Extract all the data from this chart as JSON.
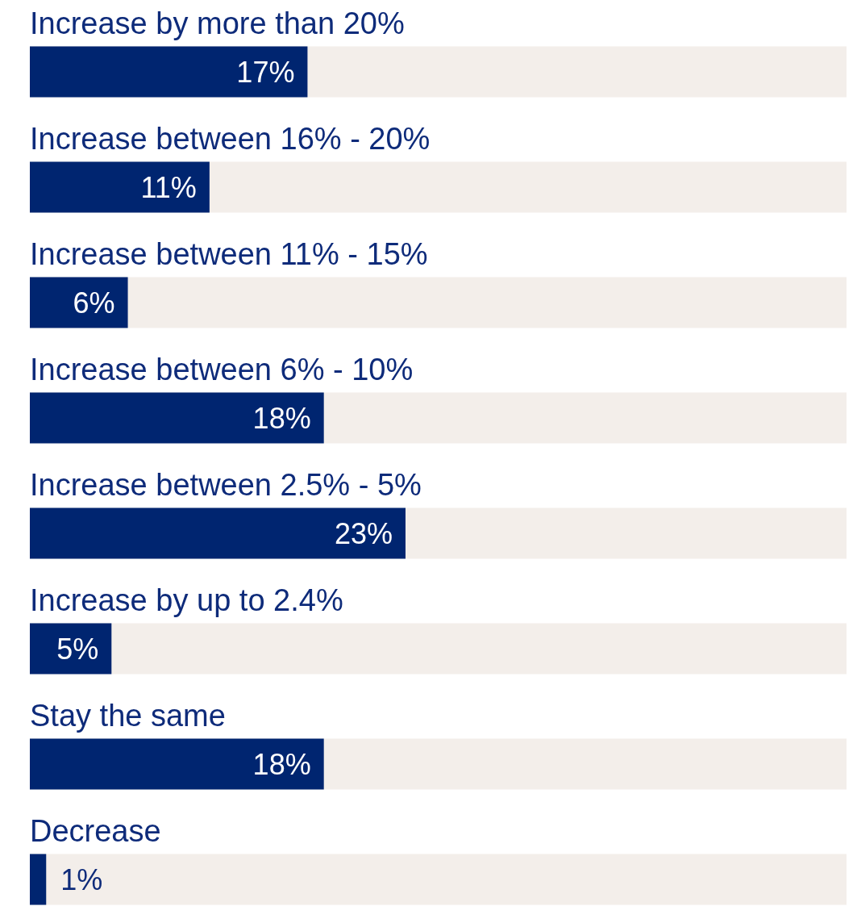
{
  "chart_data": {
    "type": "bar",
    "orientation": "horizontal",
    "categories": [
      "Increase by more than 20%",
      "Increase between 16% - 20%",
      "Increase between 11% - 15%",
      "Increase between 6% - 10%",
      "Increase between 2.5% - 5%",
      "Increase by up to 2.4%",
      "Stay the same",
      "Decrease"
    ],
    "values": [
      17,
      11,
      6,
      18,
      23,
      5,
      18,
      1
    ],
    "value_labels": [
      "17%",
      "11%",
      "6%",
      "18%",
      "23%",
      "5%",
      "18%",
      "1%"
    ],
    "color": "#002570",
    "xlim": [
      0,
      50
    ]
  }
}
